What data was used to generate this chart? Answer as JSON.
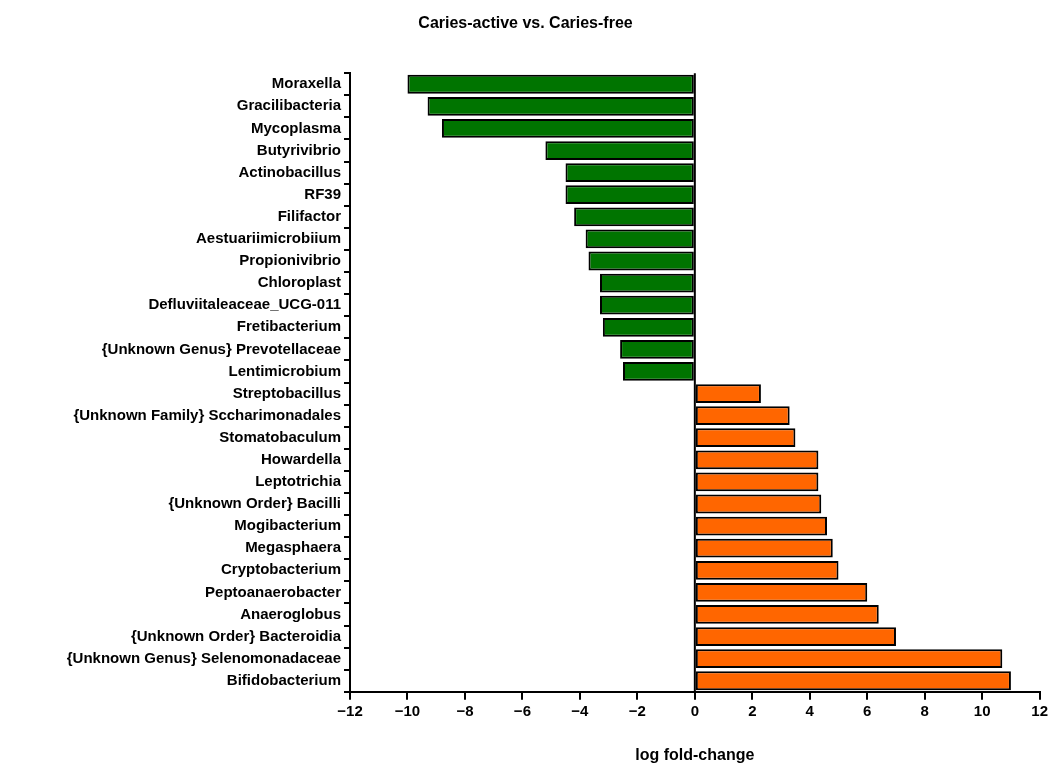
{
  "chart_data": {
    "type": "bar",
    "orientation": "horizontal",
    "title": "Caries-active vs. Caries-free",
    "xlabel": "log fold-change",
    "categories": [
      "Moraxella",
      "Gracilibacteria",
      "Mycoplasma",
      "Butyrivibrio",
      "Actinobacillus",
      "RF39",
      "Filifactor",
      "Aestuariimicrobiium",
      "Propionivibrio",
      "Chloroplast",
      "Defluviitaleaceae_UCG-011",
      "Fretibacterium",
      "{Unknown Genus} Prevotellaceae",
      "Lentimicrobium",
      "Streptobacillus",
      "{Unknown Family} Sccharimonadales",
      "Stomatobaculum",
      "Howardella",
      "Leptotrichia",
      "{Unknown Order} Bacilli",
      "Mogibacterium",
      "Megasphaera",
      "Cryptobacterium",
      "Peptoanaerobacter",
      "Anaeroglobus",
      "{Unknown Order} Bacteroidia",
      "{Unknown Genus} Selenomonadaceae",
      "Bifidobacterium"
    ],
    "values": [
      -10.0,
      -9.3,
      -8.8,
      -5.2,
      -4.5,
      -4.5,
      -4.2,
      -3.8,
      -3.7,
      -3.3,
      -3.3,
      -3.2,
      -2.6,
      -2.5,
      2.3,
      3.3,
      3.5,
      4.3,
      4.3,
      4.4,
      4.6,
      4.8,
      5.0,
      6.0,
      6.4,
      7.0,
      10.7,
      11.0
    ],
    "colors": [
      "#007400",
      "#007400",
      "#007400",
      "#007400",
      "#007400",
      "#007400",
      "#007400",
      "#007400",
      "#007400",
      "#007400",
      "#007400",
      "#007400",
      "#007400",
      "#007400",
      "#ff6600",
      "#ff6600",
      "#ff6600",
      "#ff6600",
      "#ff6600",
      "#ff6600",
      "#ff6600",
      "#ff6600",
      "#ff6600",
      "#ff6600",
      "#ff6600",
      "#ff6600",
      "#ff6600",
      "#ff6600"
    ],
    "xlim": [
      -12,
      12
    ],
    "xticks": [
      -12,
      -10,
      -8,
      -6,
      -4,
      -2,
      0,
      2,
      4,
      6,
      8,
      10,
      12
    ],
    "ref_lines": [
      {
        "axis": "x",
        "value": 0,
        "color": "#000000"
      }
    ],
    "grid": false,
    "legend": false
  }
}
